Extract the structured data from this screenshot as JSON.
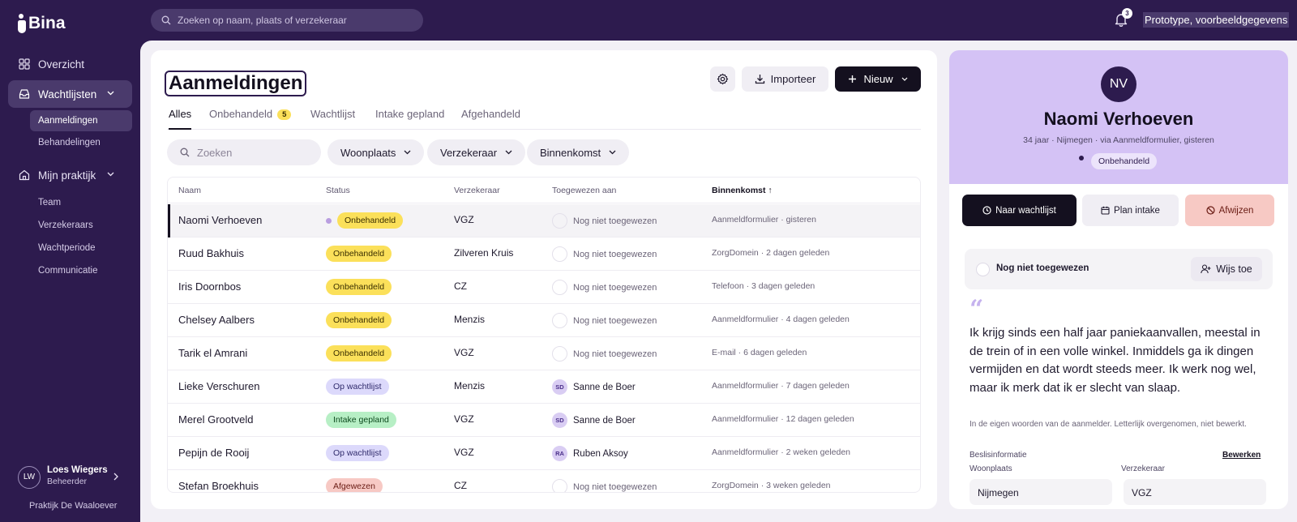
{
  "app": {
    "name": "Bina"
  },
  "topbar": {
    "search_placeholder": "Zoeken op naam, plaats of verzekeraar",
    "notification_count": "3",
    "prototype_label": "Prototype, voorbeeldgegevens"
  },
  "sidebar": {
    "overview": "Overzicht",
    "waitlists": "Wachtlijsten",
    "waitlist_sub": [
      "Aanmeldingen",
      "Behandelingen"
    ],
    "practice": "Mijn praktijk",
    "practice_sub": [
      "Team",
      "Verzekeraars",
      "Wachtperiode",
      "Communicatie"
    ],
    "user": {
      "initials": "LW",
      "name": "Loes Wiegers",
      "role": "Beheerder"
    },
    "practice_name": "Praktijk De Waaloever"
  },
  "main": {
    "title": "Aanmeldingen",
    "import_label": "Importeer",
    "new_label": "Nieuw",
    "tabs": [
      {
        "label": "Alles"
      },
      {
        "label": "Onbehandeld",
        "badge": "5"
      },
      {
        "label": "Wachtlijst"
      },
      {
        "label": "Intake gepland"
      },
      {
        "label": "Afgehandeld"
      }
    ],
    "filter_search_placeholder": "Zoeken",
    "filters": [
      "Woonplaats",
      "Verzekeraar",
      "Binnenkomst"
    ],
    "columns": [
      "Naam",
      "Status",
      "Verzekeraar",
      "Toegewezen aan",
      "Binnenkomst ↑"
    ],
    "rows": [
      {
        "name": "Naomi Verhoeven",
        "status": "Onbehandeld",
        "insurer": "VGZ",
        "assignee": "Nog niet toegewezen",
        "initials": "",
        "source": "Aanmeldformulier · gisteren"
      },
      {
        "name": "Ruud Bakhuis",
        "status": "Onbehandeld",
        "insurer": "Zilveren Kruis",
        "assignee": "Nog niet toegewezen",
        "initials": "",
        "source": "ZorgDomein · 2 dagen geleden"
      },
      {
        "name": "Iris Doornbos",
        "status": "Onbehandeld",
        "insurer": "CZ",
        "assignee": "Nog niet toegewezen",
        "initials": "",
        "source": "Telefoon · 3 dagen geleden"
      },
      {
        "name": "Chelsey Aalbers",
        "status": "Onbehandeld",
        "insurer": "Menzis",
        "assignee": "Nog niet toegewezen",
        "initials": "",
        "source": "Aanmeldformulier · 4 dagen geleden"
      },
      {
        "name": "Tarik el Amrani",
        "status": "Onbehandeld",
        "insurer": "VGZ",
        "assignee": "Nog niet toegewezen",
        "initials": "",
        "source": "E-mail · 6 dagen geleden"
      },
      {
        "name": "Lieke Verschuren",
        "status": "Op wachtlijst",
        "insurer": "Menzis",
        "assignee": "Sanne de Boer",
        "initials": "SD",
        "source": "Aanmeldformulier · 7 dagen geleden"
      },
      {
        "name": "Merel Grootveld",
        "status": "Intake gepland",
        "insurer": "VGZ",
        "assignee": "Sanne de Boer",
        "initials": "SD",
        "source": "Aanmeldformulier · 12 dagen geleden"
      },
      {
        "name": "Pepijn de Rooij",
        "status": "Op wachtlijst",
        "insurer": "VGZ",
        "assignee": "Ruben Aksoy",
        "initials": "RA",
        "source": "Aanmeldformulier · 2 weken geleden"
      },
      {
        "name": "Stefan Broekhuis",
        "status": "Afgewezen",
        "insurer": "CZ",
        "assignee": "Nog niet toegewezen",
        "initials": "",
        "source": "ZorgDomein · 3 weken geleden"
      }
    ]
  },
  "panel": {
    "initials": "NV",
    "name": "Naomi Verhoeven",
    "meta": "34 jaar · Nijmegen · via Aanmeldformulier, gisteren",
    "status": "Onbehandeld",
    "btn_waitlist": "Naar wachtlijst",
    "btn_plan": "Plan intake",
    "btn_reject": "Afwijzen",
    "assign_label": "Nog niet toegewezen",
    "assign_btn": "Wijs toe",
    "quote_mark": "“",
    "quote": "Ik krijg sinds een half jaar paniekaanvallen, meestal in de trein of in een volle winkel. Inmiddels ga ik dingen vermijden en dat wordt steeds meer. Ik werk nog wel, maar ik merk dat ik er slecht van slaap.",
    "quote_note": "In de eigen woorden van de aanmelder. Letterlijk overgenomen, niet bewerkt.",
    "decision_title": "Beslisinformatie",
    "edit_label": "Bewerken",
    "fields": [
      {
        "label": "Woonplaats",
        "value": "Nijmegen"
      },
      {
        "label": "Verzekeraar",
        "value": "VGZ"
      }
    ]
  },
  "colors": {
    "sidebar_bg": "#2d1b4e",
    "accent": "#d4c2f5",
    "pending": "#fbe05a",
    "waitlist": "#dcd9fb",
    "intake": "#b7efc5",
    "rejected": "#f7c9c4"
  }
}
